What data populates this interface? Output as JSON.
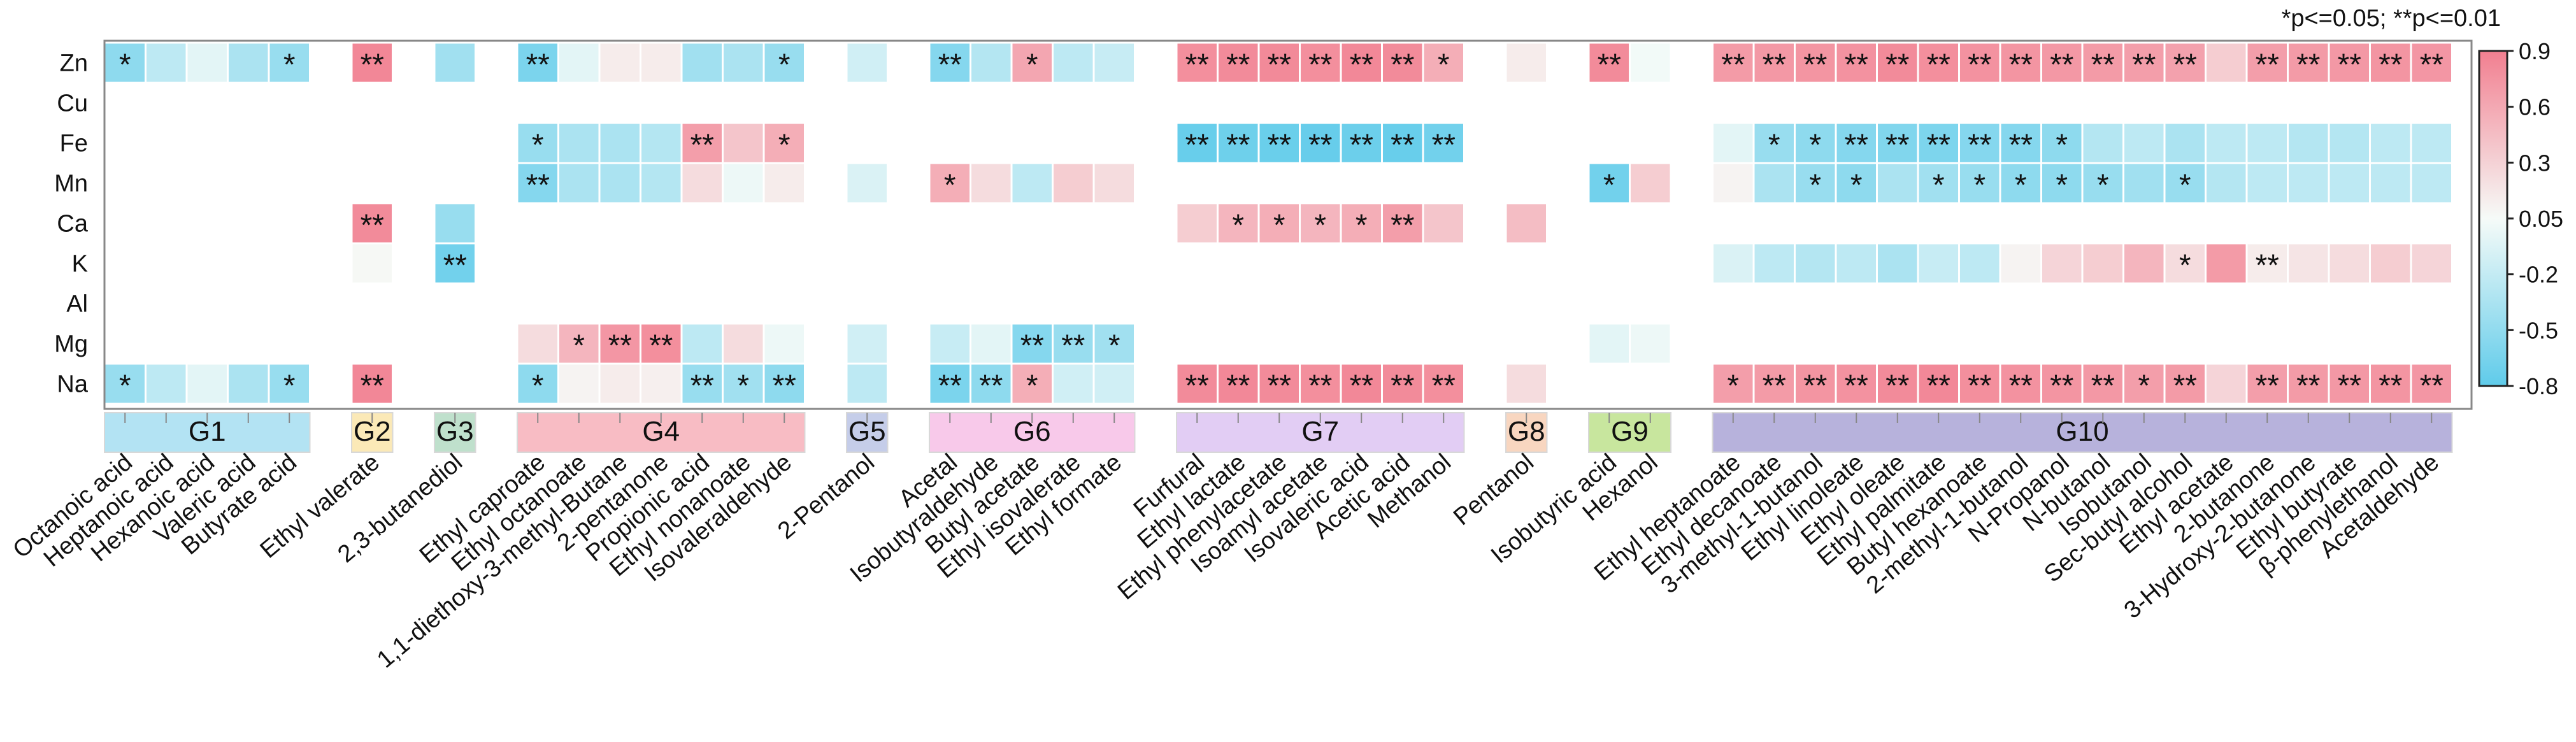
{
  "note": "*p<=0.05; **p<=0.01",
  "chart_data": {
    "type": "heatmap",
    "rows": [
      "Zn",
      "Cu",
      "Fe",
      "Mn",
      "Ca",
      "K",
      "Al",
      "Mg",
      "Na"
    ],
    "groups": [
      {
        "name": "G1",
        "color": "#b3e3f3",
        "columns": [
          "Octanoic acid",
          "Heptanoic acid",
          "Hexanoic acid",
          "Valeric acid",
          "Butyrate acid"
        ]
      },
      {
        "name": "G2",
        "color": "#fbe9b7",
        "columns": [
          "Ethyl valerate"
        ]
      },
      {
        "name": "G3",
        "color": "#bfe0cc",
        "columns": [
          "2,3-butanediol"
        ]
      },
      {
        "name": "G4",
        "color": "#f8bcc4",
        "columns": [
          "Ethyl caproate",
          "Ethyl octanoate",
          "1,1-diethoxy-3-methyl-Butane",
          "2-pentanone",
          "Propionic acid",
          "Ethyl nonanoate",
          "Isovaleraldehyde"
        ]
      },
      {
        "name": "G5",
        "color": "#c5cde9",
        "columns": [
          "2-Pentanol"
        ]
      },
      {
        "name": "G6",
        "color": "#f8c9ea",
        "columns": [
          "Acetal",
          "Isobutyraldehyde",
          "Butyl acetate",
          "Ethyl isovalerate",
          "Ethyl formate"
        ]
      },
      {
        "name": "G7",
        "color": "#e2cdf4",
        "columns": [
          "Furfural",
          "Ethyl lactate",
          "Ethyl phenylacetate",
          "Isoamyl acetate",
          "Isovaleric acid",
          "Acetic acid",
          "Methanol"
        ]
      },
      {
        "name": "G8",
        "color": "#f8d6c0",
        "columns": [
          "Pentanol"
        ]
      },
      {
        "name": "G9",
        "color": "#c8e69e",
        "columns": [
          "Isobutyric acid",
          "Hexanol"
        ]
      },
      {
        "name": "G10",
        "color": "#b7b2dc",
        "columns": [
          "Ethyl heptanoate",
          "Ethyl decanoate",
          "3-methyl-1-butanol",
          "Ethyl linoleate",
          "Ethyl oleate",
          "Ethyl palmitate",
          "Butyl hexanoate",
          "2-methyl-1-butanol",
          "N-Propanol",
          "N-butanol",
          "Isobutanol",
          "Sec-butyl alcohol",
          "Ethyl acetate",
          "2-butanone",
          "3-Hydroxy-2-butanone",
          "Ethyl butyrate",
          "β-phenylethanol",
          "Acetaldehyde"
        ]
      }
    ],
    "colorbar": {
      "min": -0.8,
      "max": 0.9,
      "ticks": [
        "0.9",
        "0.6",
        "0.3",
        "0.05",
        "-0.2",
        "-0.5",
        "-0.8"
      ],
      "neg_color": "#5fcbea",
      "mid_color": "#f6fbf8",
      "pos_color": "#f27f90"
    },
    "values": {
      "Zn": [
        -0.55,
        -0.3,
        -0.1,
        -0.4,
        -0.5,
        0.75,
        -0.45,
        -0.65,
        -0.1,
        0.1,
        0.1,
        -0.45,
        -0.4,
        -0.5,
        -0.2,
        -0.6,
        -0.35,
        0.55,
        -0.3,
        -0.25,
        0.7,
        0.72,
        0.73,
        0.7,
        0.74,
        0.72,
        0.5,
        0.1,
        0.72,
        -0.02,
        0.62,
        0.64,
        0.66,
        0.68,
        0.72,
        0.7,
        0.68,
        0.66,
        0.64,
        0.62,
        0.6,
        0.58,
        0.3,
        0.6,
        0.62,
        0.64,
        0.66,
        0.65
      ],
      "Cu": [
        null,
        null,
        null,
        null,
        null,
        null,
        null,
        null,
        null,
        null,
        null,
        null,
        null,
        null,
        null,
        null,
        null,
        null,
        null,
        null,
        null,
        null,
        null,
        null,
        null,
        null,
        null,
        null,
        null,
        null,
        null,
        null,
        null,
        null,
        null,
        null,
        null,
        null,
        null,
        null,
        null,
        null,
        null,
        null,
        null,
        null,
        null,
        null
      ],
      "Fe": [
        null,
        null,
        null,
        null,
        null,
        null,
        null,
        -0.5,
        -0.4,
        -0.4,
        -0.35,
        0.6,
        0.35,
        0.5,
        null,
        null,
        null,
        null,
        null,
        null,
        -0.75,
        -0.72,
        -0.74,
        -0.76,
        -0.73,
        -0.75,
        -0.7,
        null,
        null,
        null,
        -0.1,
        -0.5,
        -0.55,
        -0.6,
        -0.62,
        -0.64,
        -0.6,
        -0.6,
        -0.55,
        -0.35,
        -0.3,
        -0.4,
        -0.3,
        -0.3,
        -0.35,
        -0.35,
        -0.3,
        -0.3
      ],
      "Mn": [
        null,
        null,
        null,
        null,
        null,
        null,
        null,
        -0.6,
        -0.4,
        -0.4,
        -0.35,
        0.2,
        -0.05,
        0.1,
        -0.15,
        0.5,
        0.2,
        -0.3,
        0.3,
        0.2,
        null,
        null,
        null,
        null,
        null,
        null,
        null,
        null,
        -0.7,
        0.3,
        0.05,
        -0.4,
        -0.5,
        -0.55,
        -0.4,
        -0.45,
        -0.5,
        -0.55,
        -0.55,
        -0.5,
        -0.45,
        -0.5,
        -0.35,
        -0.3,
        -0.3,
        -0.3,
        -0.3,
        -0.3
      ],
      "Ca": [
        null,
        null,
        null,
        null,
        null,
        0.72,
        -0.5,
        null,
        null,
        null,
        null,
        null,
        null,
        null,
        null,
        null,
        null,
        null,
        null,
        null,
        0.3,
        0.45,
        0.5,
        0.45,
        0.5,
        0.6,
        0.35,
        0.4,
        null,
        null,
        null,
        null,
        null,
        null,
        null,
        null,
        null,
        null,
        null,
        null,
        null,
        null,
        null,
        null,
        null,
        null,
        null,
        null
      ],
      "K": [
        null,
        null,
        null,
        null,
        null,
        0.02,
        -0.7,
        null,
        null,
        null,
        null,
        null,
        null,
        null,
        null,
        null,
        null,
        null,
        null,
        null,
        null,
        null,
        null,
        null,
        null,
        null,
        null,
        null,
        null,
        null,
        -0.15,
        -0.3,
        -0.35,
        -0.3,
        -0.4,
        -0.25,
        -0.3,
        0.05,
        0.25,
        0.3,
        0.45,
        0.2,
        0.62,
        0.1,
        0.15,
        0.2,
        0.3,
        0.25
      ],
      "Al": [
        null,
        null,
        null,
        null,
        null,
        null,
        null,
        null,
        null,
        null,
        null,
        null,
        null,
        null,
        null,
        null,
        null,
        null,
        null,
        null,
        null,
        null,
        null,
        null,
        null,
        null,
        null,
        null,
        null,
        null,
        null,
        null,
        null,
        null,
        null,
        null,
        null,
        null,
        null,
        null,
        null,
        null,
        null,
        null,
        null,
        null,
        null,
        null
      ],
      "Mg": [
        null,
        null,
        null,
        null,
        null,
        null,
        null,
        0.2,
        0.45,
        0.65,
        0.7,
        -0.3,
        0.2,
        -0.05,
        -0.2,
        -0.25,
        -0.1,
        -0.6,
        -0.5,
        -0.45,
        null,
        null,
        null,
        null,
        null,
        null,
        null,
        null,
        -0.1,
        -0.05,
        null,
        null,
        null,
        null,
        null,
        null,
        null,
        null,
        null,
        null,
        null,
        null,
        null,
        null,
        null,
        null,
        null,
        null
      ],
      "Na": [
        -0.5,
        -0.3,
        -0.1,
        -0.4,
        -0.5,
        0.75,
        null,
        -0.55,
        0.05,
        0.1,
        0.08,
        -0.5,
        -0.45,
        -0.55,
        -0.3,
        -0.65,
        -0.55,
        0.5,
        -0.2,
        -0.2,
        0.72,
        0.74,
        0.72,
        0.7,
        0.74,
        0.72,
        0.7,
        0.2,
        null,
        null,
        0.6,
        0.62,
        0.66,
        0.68,
        0.72,
        0.74,
        0.7,
        0.68,
        0.66,
        0.64,
        0.6,
        0.62,
        0.25,
        0.6,
        0.62,
        0.64,
        0.66,
        0.65
      ]
    },
    "significance": {
      "Zn": [
        "*",
        "",
        "",
        "",
        "*",
        "**",
        "",
        "**",
        "",
        "",
        "",
        "",
        "",
        "*",
        "",
        "**",
        "",
        "*",
        "",
        "",
        "**",
        "**",
        "**",
        "**",
        "**",
        "**",
        "*",
        "",
        "**",
        "",
        "**",
        "**",
        "**",
        "**",
        "**",
        "**",
        "**",
        "**",
        "**",
        "**",
        "**",
        "**",
        "",
        "**",
        "**",
        "**",
        "**",
        "**"
      ],
      "Cu": [
        "",
        "",
        "",
        "",
        "",
        "",
        "",
        "",
        "",
        "",
        "",
        "",
        "",
        "",
        "",
        "",
        "",
        "",
        "",
        "",
        "",
        "",
        "",
        "",
        "",
        "",
        "",
        "",
        "",
        "",
        "",
        "",
        "",
        "",
        "",
        "",
        "",
        "",
        "",
        "",
        "",
        "",
        "",
        "",
        "",
        "",
        "",
        ""
      ],
      "Fe": [
        "",
        "",
        "",
        "",
        "",
        "",
        "",
        "*",
        "",
        "",
        "",
        "**",
        "",
        "*",
        "",
        "",
        "",
        "",
        "",
        "",
        "**",
        "**",
        "**",
        "**",
        "**",
        "**",
        "**",
        "",
        "",
        "",
        "",
        "*",
        "*",
        "**",
        "**",
        "**",
        "**",
        "**",
        "*",
        "",
        "",
        "",
        "",
        "",
        "",
        "",
        "",
        ""
      ],
      "Mn": [
        "",
        "",
        "",
        "",
        "",
        "",
        "",
        "**",
        "",
        "",
        "",
        "",
        "",
        "",
        "",
        "*",
        "",
        "",
        "",
        "",
        "",
        "",
        "",
        "",
        "",
        "",
        "",
        "",
        "*",
        "",
        "",
        "",
        "*",
        "*",
        "",
        "*",
        "*",
        "*",
        "*",
        "*",
        "",
        "*",
        "",
        "",
        "",
        "",
        "",
        ""
      ],
      "Ca": [
        "",
        "",
        "",
        "",
        "",
        "**",
        "",
        "",
        "",
        "",
        "",
        "",
        "",
        "",
        "",
        "",
        "",
        "",
        "",
        "",
        "",
        "*",
        "*",
        "*",
        "*",
        "**",
        "",
        "",
        "",
        "",
        "",
        "",
        "",
        "",
        "",
        "",
        "",
        "",
        "",
        "",
        "",
        "",
        "",
        "",
        "",
        "",
        "",
        ""
      ],
      "K": [
        "",
        "",
        "",
        "",
        "",
        "",
        "**",
        "",
        "",
        "",
        "",
        "",
        "",
        "",
        "",
        "",
        "",
        "",
        "",
        "",
        "",
        "",
        "",
        "",
        "",
        "",
        "",
        "",
        "",
        "",
        "",
        "",
        "",
        "",
        "",
        "",
        "",
        "",
        "",
        "",
        "",
        "*",
        "",
        "**",
        "",
        "",
        "",
        ""
      ],
      "Al": [
        "",
        "",
        "",
        "",
        "",
        "",
        "",
        "",
        "",
        "",
        "",
        "",
        "",
        "",
        "",
        "",
        "",
        "",
        "",
        "",
        "",
        "",
        "",
        "",
        "",
        "",
        "",
        "",
        "",
        "",
        "",
        "",
        "",
        "",
        "",
        "",
        "",
        "",
        "",
        "",
        "",
        "",
        "",
        "",
        "",
        "",
        "",
        ""
      ],
      "Mg": [
        "",
        "",
        "",
        "",
        "",
        "",
        "",
        "",
        "*",
        "**",
        "**",
        "",
        "",
        "",
        "",
        "",
        "",
        "**",
        "**",
        "*",
        "",
        "",
        "",
        "",
        "",
        "",
        "",
        "",
        "",
        "",
        "",
        "",
        "",
        "",
        "",
        "",
        "",
        "",
        "",
        "",
        "",
        "",
        "",
        "",
        "",
        "",
        "",
        ""
      ],
      "Na": [
        "*",
        "",
        "",
        "",
        "*",
        "**",
        "",
        "*",
        "",
        "",
        "",
        "**",
        "*",
        "**",
        "",
        "**",
        "**",
        "*",
        "",
        "",
        "**",
        "**",
        "**",
        "**",
        "**",
        "**",
        "**",
        "",
        "",
        "",
        "*",
        "**",
        "**",
        "**",
        "**",
        "**",
        "**",
        "**",
        "**",
        "**",
        "*",
        "**",
        "",
        "**",
        "**",
        "**",
        "**",
        "**"
      ]
    }
  }
}
